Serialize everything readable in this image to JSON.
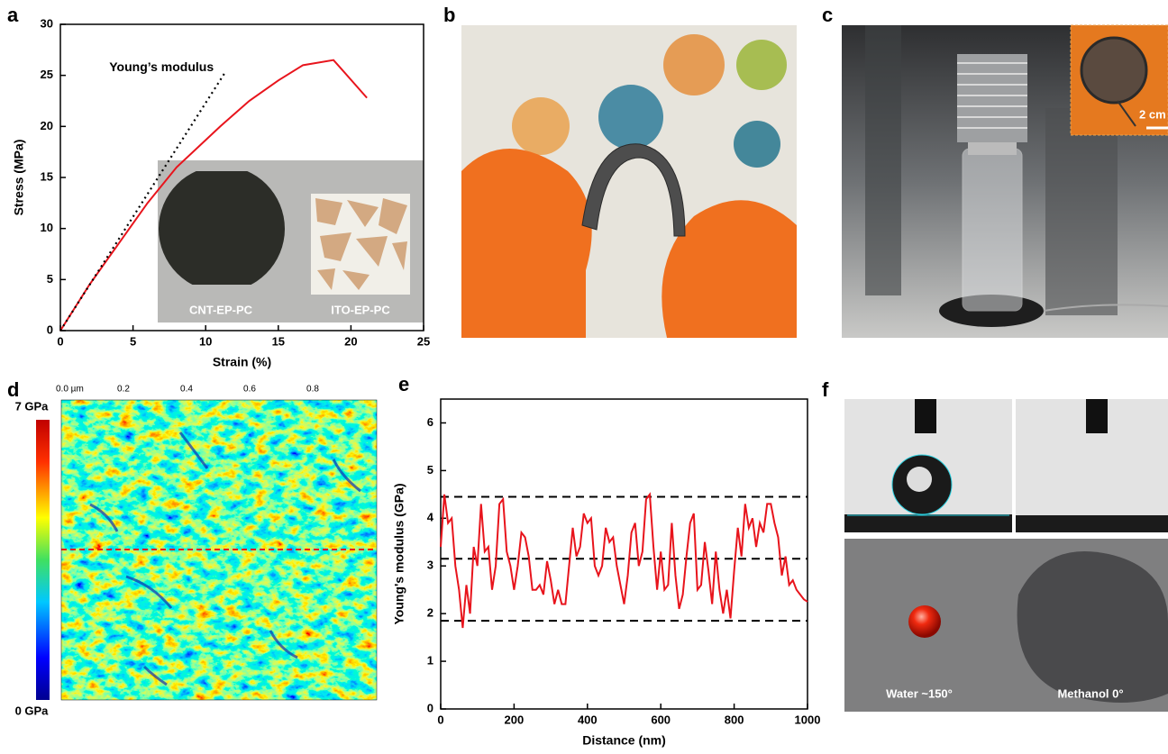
{
  "chart_data": [
    {
      "type": "line",
      "xlabel": "Strain (%)",
      "ylabel": "Stress (MPa)",
      "xlim": [
        0,
        25
      ],
      "xticks": [
        0,
        5,
        10,
        15,
        20,
        25
      ],
      "ylim": [
        0,
        30
      ],
      "yticks": [
        0,
        5,
        10,
        15,
        20,
        25,
        30
      ],
      "series": [
        {
          "color": "#e8141c",
          "x": [
            0,
            2,
            4,
            6,
            8,
            11,
            13,
            15,
            16.7,
            18.8,
            21.1
          ],
          "values": [
            0,
            4.5,
            8.5,
            12.5,
            16,
            20,
            22.5,
            24.5,
            26,
            26.5,
            22.8
          ]
        },
        {
          "name": "Young’s modulus",
          "color": "#000000",
          "dash": "dotted",
          "x": [
            0,
            11.3
          ],
          "values": [
            0,
            25.2
          ]
        }
      ]
    },
    {
      "type": "line",
      "xlabel": "Distance (nm)",
      "ylabel": "Young's modulus (GPa)",
      "xlim": [
        0,
        1000
      ],
      "xticks": [
        0,
        200,
        400,
        600,
        800,
        1000
      ],
      "ylim": [
        0,
        6.5
      ],
      "yticks": [
        0,
        1,
        2,
        3,
        4,
        5,
        6
      ],
      "hlines": [
        4.45,
        3.15,
        1.85
      ],
      "series": [
        {
          "color": "#e8141c",
          "x": [
            0,
            10,
            20,
            30,
            40,
            50,
            60,
            70,
            80,
            90,
            100,
            110,
            120,
            130,
            140,
            150,
            160,
            170,
            180,
            190,
            200,
            210,
            220,
            230,
            240,
            250,
            260,
            270,
            280,
            290,
            300,
            310,
            320,
            330,
            340,
            350,
            360,
            370,
            380,
            390,
            400,
            410,
            420,
            430,
            440,
            450,
            460,
            470,
            480,
            490,
            500,
            510,
            520,
            530,
            540,
            550,
            560,
            570,
            580,
            590,
            600,
            610,
            620,
            630,
            640,
            650,
            660,
            670,
            680,
            690,
            700,
            710,
            720,
            730,
            740,
            750,
            760,
            770,
            780,
            790,
            800,
            810,
            820,
            830,
            840,
            850,
            860,
            870,
            880,
            890,
            900,
            910,
            920,
            930,
            940,
            950,
            960,
            970,
            980,
            990,
            1000
          ],
          "values": [
            3.4,
            4.5,
            3.9,
            4.0,
            3.0,
            2.5,
            1.7,
            2.6,
            2.0,
            3.4,
            3.0,
            4.3,
            3.3,
            3.4,
            2.5,
            3.0,
            4.3,
            4.4,
            3.3,
            3.0,
            2.5,
            3.0,
            3.7,
            3.6,
            3.2,
            2.5,
            2.5,
            2.6,
            2.4,
            3.1,
            2.7,
            2.2,
            2.5,
            2.2,
            2.2,
            3.0,
            3.8,
            3.2,
            3.4,
            4.1,
            3.9,
            4.0,
            3.0,
            2.8,
            3.0,
            3.8,
            3.5,
            3.6,
            3.0,
            2.6,
            2.2,
            2.8,
            3.7,
            3.9,
            3.0,
            3.3,
            4.4,
            4.5,
            3.4,
            2.5,
            3.3,
            2.5,
            2.6,
            3.9,
            2.8,
            2.1,
            2.4,
            3.2,
            3.9,
            4.1,
            2.5,
            2.6,
            3.5,
            2.9,
            2.2,
            3.3,
            2.5,
            2.0,
            2.5,
            1.9,
            2.9,
            3.8,
            3.2,
            4.3,
            3.8,
            4.0,
            3.4,
            3.9,
            3.7,
            4.3,
            4.3,
            3.9,
            3.6,
            2.8,
            3.2,
            2.6,
            2.7,
            2.5,
            2.4,
            2.3,
            2.25
          ]
        }
      ]
    }
  ],
  "figure": {
    "panel_labels": [
      "a",
      "b",
      "c",
      "d",
      "e",
      "f"
    ],
    "inset_labels": [
      "CNT-EP-PC",
      "ITO-EP-PC"
    ],
    "scale_bar": "2 cm",
    "afm_ticks": [
      "0.0 µm",
      "0.2",
      "0.4",
      "0.6",
      "0.8"
    ],
    "colorbar": {
      "max": "7 GPa",
      "min": "0 GPa"
    },
    "droplet_labels": [
      "Water ~150°",
      "Methanol 0°"
    ]
  }
}
